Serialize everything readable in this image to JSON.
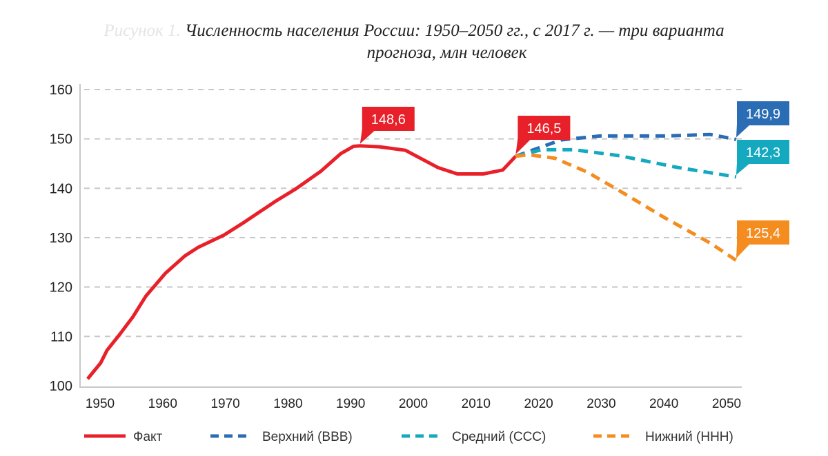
{
  "chart_data": {
    "type": "line",
    "title_prefix": "Рисунок 1.",
    "title_line1": "Численность населения России: 1950–2050 гг., с 2017 г. — три варианта",
    "title_line2": "прогноза, млн человек",
    "xlabel": "",
    "ylabel": "",
    "xlim": [
      1950,
      2050
    ],
    "ylim": [
      100,
      160
    ],
    "x_ticks": [
      "1950",
      "1960",
      "1970",
      "1980",
      "1990",
      "2000",
      "2010",
      "2020",
      "2030",
      "2040",
      "2050"
    ],
    "y_ticks": [
      "100",
      "110",
      "120",
      "130",
      "140",
      "150",
      "160"
    ],
    "grid": "horizontal dashed",
    "legend_placement": "bottom",
    "series": [
      {
        "name": "Факт",
        "color": "#e8202a",
        "style": "solid",
        "points": [
          [
            1950,
            101.4
          ],
          [
            1952,
            104.6
          ],
          [
            1953,
            107.2
          ],
          [
            1955,
            110.5
          ],
          [
            1957,
            114.0
          ],
          [
            1959,
            118.2
          ],
          [
            1962,
            122.8
          ],
          [
            1965,
            126.3
          ],
          [
            1967,
            128.0
          ],
          [
            1971,
            130.5
          ],
          [
            1974,
            133.0
          ],
          [
            1979,
            137.4
          ],
          [
            1982,
            139.8
          ],
          [
            1986,
            143.5
          ],
          [
            1989,
            147.0
          ],
          [
            1991,
            148.5
          ],
          [
            1992,
            148.6
          ],
          [
            1995,
            148.4
          ],
          [
            1999,
            147.7
          ],
          [
            2004,
            144.2
          ],
          [
            2007,
            142.9
          ],
          [
            2011,
            142.9
          ],
          [
            2014,
            143.7
          ],
          [
            2016,
            146.5
          ]
        ]
      },
      {
        "name": "Верхний (ВВВ)",
        "color": "#2a6db5",
        "style": "dashed",
        "points": [
          [
            2016,
            146.5
          ],
          [
            2023,
            149.8
          ],
          [
            2029,
            150.6
          ],
          [
            2039,
            150.6
          ],
          [
            2046,
            150.9
          ],
          [
            2050,
            149.9
          ]
        ]
      },
      {
        "name": "Средний (ССС)",
        "color": "#14a9bf",
        "style": "dashed",
        "points": [
          [
            2016,
            146.5
          ],
          [
            2020,
            147.8
          ],
          [
            2025,
            147.8
          ],
          [
            2032,
            146.6
          ],
          [
            2041,
            144.2
          ],
          [
            2050,
            142.3
          ]
        ]
      },
      {
        "name": "Нижний (ННН)",
        "color": "#f48c20",
        "style": "dashed",
        "points": [
          [
            2016,
            146.5
          ],
          [
            2018,
            146.8
          ],
          [
            2022,
            146.1
          ],
          [
            2027,
            143.3
          ],
          [
            2032,
            139.5
          ],
          [
            2039,
            134.0
          ],
          [
            2046,
            128.9
          ],
          [
            2050,
            125.4
          ]
        ]
      }
    ],
    "annotations": [
      {
        "text": "148,6",
        "x": 1992,
        "y": 148.6,
        "color": "#e8202a"
      },
      {
        "text": "146,5",
        "x": 2016,
        "y": 146.5,
        "color": "#e8202a"
      },
      {
        "text": "149,9",
        "x": 2050,
        "y": 149.9,
        "color": "#2a6db5"
      },
      {
        "text": "142,3",
        "x": 2050,
        "y": 142.3,
        "color": "#14a9bf"
      },
      {
        "text": "125,4",
        "x": 2050,
        "y": 125.4,
        "color": "#f48c20"
      }
    ]
  }
}
